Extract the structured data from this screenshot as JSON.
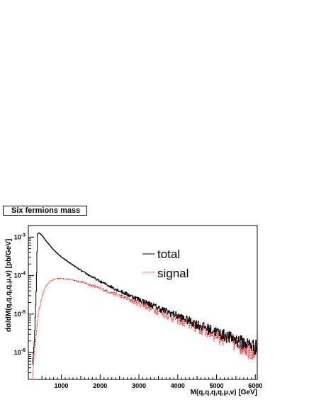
{
  "chart_data": {
    "type": "line",
    "title": "Six fermions mass",
    "xlabel": "M(q,q,q,q,μ,ν) [GeV]",
    "ylabel": "dσ/dM(q,q,q,q,μ,ν) [pb/GeV]",
    "xlim": [
      150,
      6050
    ],
    "ylim": [
      2e-07,
      0.002
    ],
    "yscale": "log",
    "grid": false,
    "legend": "top-right",
    "x_ticks": [
      1000,
      2000,
      3000,
      4000,
      5000,
      6000
    ],
    "y_ticks": [
      {
        "value": 1e-06,
        "label": "10",
        "exp": "-6"
      },
      {
        "value": 1e-05,
        "label": "10",
        "exp": "-5"
      },
      {
        "value": 0.0001,
        "label": "10",
        "exp": "-4"
      },
      {
        "value": 0.001,
        "label": "10",
        "exp": "-3"
      }
    ],
    "series": [
      {
        "name": "total",
        "color": "#000000",
        "style": "solid",
        "x": [
          250,
          300,
          350,
          380,
          420,
          500,
          600,
          800,
          1000,
          1500,
          2000,
          2500,
          3000,
          3500,
          4000,
          4500,
          5000,
          5500,
          6000,
          6050
        ],
        "y": [
          5e-07,
          2e-06,
          5e-05,
          0.0012,
          0.0013,
          0.0011,
          0.0008,
          0.00046,
          0.0003,
          0.000135,
          7e-05,
          4e-05,
          2.4e-05,
          1.45e-05,
          9e-06,
          5.5e-06,
          3.5e-06,
          2.2e-06,
          1.5e-06,
          1.5e-06
        ]
      },
      {
        "name": "signal",
        "color": "#ff0000",
        "style": "dotted",
        "x": [
          250,
          300,
          400,
          500,
          600,
          700,
          800,
          900,
          1000,
          1200,
          1500,
          2000,
          2500,
          3000,
          3500,
          4000,
          4500,
          5000,
          5500,
          6000,
          6050
        ],
        "y": [
          2e-07,
          1e-06,
          1e-05,
          3e-05,
          5.3e-05,
          7e-05,
          8e-05,
          8.5e-05,
          8.5e-05,
          8e-05,
          7e-05,
          4.6e-05,
          3e-05,
          1.9e-05,
          1.2e-05,
          7.5e-06,
          4.7e-06,
          3e-06,
          1.9e-06,
          1.2e-06,
          1.2e-06
        ]
      }
    ]
  }
}
